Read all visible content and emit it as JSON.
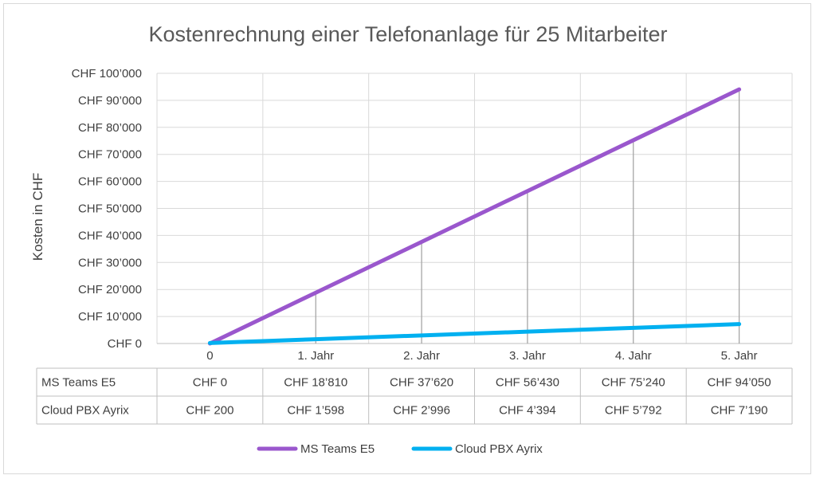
{
  "chart_data": {
    "type": "line",
    "title": "Kostenrechnung einer Telefonanlage für 25 Mitarbeiter",
    "xlabel": "",
    "ylabel": "Kosten in CHF",
    "categories": [
      "0",
      "1. Jahr",
      "2. Jahr",
      "3. Jahr",
      "4. Jahr",
      "5. Jahr"
    ],
    "ylim": [
      0,
      100000
    ],
    "y_ticks": [
      0,
      10000,
      20000,
      30000,
      40000,
      50000,
      60000,
      70000,
      80000,
      90000,
      100000
    ],
    "y_tick_labels": [
      "CHF 0",
      "CHF 10’000",
      "CHF 20’000",
      "CHF 30’000",
      "CHF 40’000",
      "CHF 50’000",
      "CHF 60’000",
      "CHF 70’000",
      "CHF 80’000",
      "CHF 90’000",
      "CHF 100’000"
    ],
    "grid": true,
    "legend_position": "bottom",
    "drop_lines": true,
    "series": [
      {
        "name": "MS Teams E5",
        "color": "#9a57cd",
        "values": [
          0,
          18810,
          37620,
          56430,
          75240,
          94050
        ],
        "labels": [
          "CHF 0",
          "CHF 18’810",
          "CHF 37’620",
          "CHF 56’430",
          "CHF 75’240",
          "CHF 94’050"
        ]
      },
      {
        "name": "Cloud PBX Ayrix",
        "color": "#00b0f0",
        "values": [
          200,
          1598,
          2996,
          4394,
          5792,
          7190
        ],
        "labels": [
          "CHF 200",
          "CHF 1’598",
          "CHF 2’996",
          "CHF 4’394",
          "CHF 5’792",
          "CHF 7’190"
        ]
      }
    ]
  }
}
